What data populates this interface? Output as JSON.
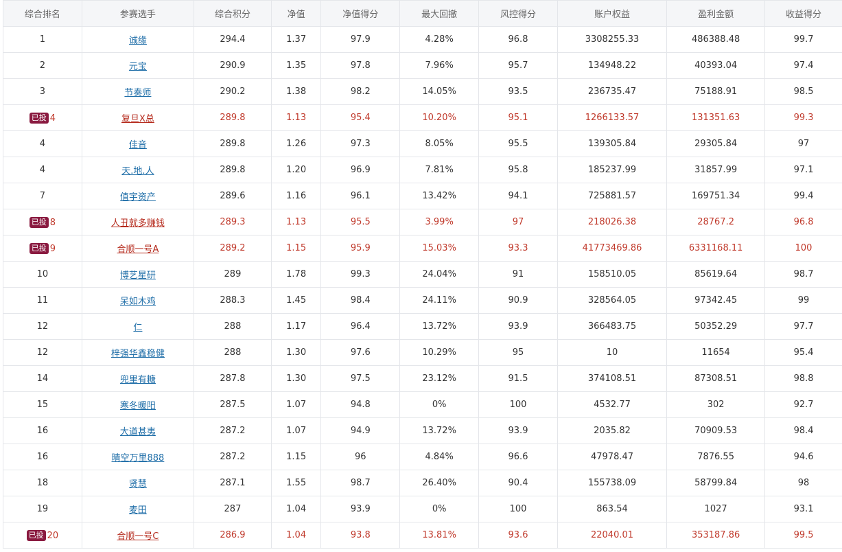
{
  "table": {
    "headers": [
      "综合排名",
      "参赛选手",
      "综合积分",
      "净值",
      "净值得分",
      "最大回撤",
      "风控得分",
      "账户权益",
      "盈利金额",
      "收益得分"
    ],
    "badge_label": "已投",
    "rows": [
      {
        "rank": "1",
        "name": "诚缘",
        "score": "294.4",
        "nav": "1.37",
        "nav_score": "97.9",
        "max_drawdown": "4.28%",
        "risk_score": "96.8",
        "equity": "3308255.33",
        "profit": "486388.48",
        "return_score": "99.7",
        "invested": false
      },
      {
        "rank": "2",
        "name": "元宝",
        "score": "290.9",
        "nav": "1.35",
        "nav_score": "97.8",
        "max_drawdown": "7.96%",
        "risk_score": "95.7",
        "equity": "134948.22",
        "profit": "40393.04",
        "return_score": "97.4",
        "invested": false
      },
      {
        "rank": "3",
        "name": "节奏师",
        "score": "290.2",
        "nav": "1.38",
        "nav_score": "98.2",
        "max_drawdown": "14.05%",
        "risk_score": "93.5",
        "equity": "236735.47",
        "profit": "75188.91",
        "return_score": "98.5",
        "invested": false
      },
      {
        "rank": "4",
        "name": "复旦X总",
        "score": "289.8",
        "nav": "1.13",
        "nav_score": "95.4",
        "max_drawdown": "10.20%",
        "risk_score": "95.1",
        "equity": "1266133.57",
        "profit": "131351.63",
        "return_score": "99.3",
        "invested": true
      },
      {
        "rank": "4",
        "name": "佳音",
        "score": "289.8",
        "nav": "1.26",
        "nav_score": "97.3",
        "max_drawdown": "8.05%",
        "risk_score": "95.5",
        "equity": "139305.84",
        "profit": "29305.84",
        "return_score": "97",
        "invested": false
      },
      {
        "rank": "4",
        "name": "天.地.人",
        "score": "289.8",
        "nav": "1.20",
        "nav_score": "96.9",
        "max_drawdown": "7.81%",
        "risk_score": "95.8",
        "equity": "185237.99",
        "profit": "31857.99",
        "return_score": "97.1",
        "invested": false
      },
      {
        "rank": "7",
        "name": "值宇资产",
        "score": "289.6",
        "nav": "1.16",
        "nav_score": "96.1",
        "max_drawdown": "13.42%",
        "risk_score": "94.1",
        "equity": "725881.57",
        "profit": "169751.34",
        "return_score": "99.4",
        "invested": false
      },
      {
        "rank": "8",
        "name": "人丑就多赚钱",
        "score": "289.3",
        "nav": "1.13",
        "nav_score": "95.5",
        "max_drawdown": "3.99%",
        "risk_score": "97",
        "equity": "218026.38",
        "profit": "28767.2",
        "return_score": "96.8",
        "invested": true
      },
      {
        "rank": "9",
        "name": "合顺一号A",
        "score": "289.2",
        "nav": "1.15",
        "nav_score": "95.9",
        "max_drawdown": "15.03%",
        "risk_score": "93.3",
        "equity": "41773469.86",
        "profit": "6331168.11",
        "return_score": "100",
        "invested": true
      },
      {
        "rank": "10",
        "name": "博艺星研",
        "score": "289",
        "nav": "1.78",
        "nav_score": "99.3",
        "max_drawdown": "24.04%",
        "risk_score": "91",
        "equity": "158510.05",
        "profit": "85619.64",
        "return_score": "98.7",
        "invested": false
      },
      {
        "rank": "11",
        "name": "呆如木鸡",
        "score": "288.3",
        "nav": "1.45",
        "nav_score": "98.4",
        "max_drawdown": "24.11%",
        "risk_score": "90.9",
        "equity": "328564.05",
        "profit": "97342.45",
        "return_score": "99",
        "invested": false
      },
      {
        "rank": "12",
        "name": "仁",
        "score": "288",
        "nav": "1.17",
        "nav_score": "96.4",
        "max_drawdown": "13.72%",
        "risk_score": "93.9",
        "equity": "366483.75",
        "profit": "50352.29",
        "return_score": "97.7",
        "invested": false
      },
      {
        "rank": "12",
        "name": "梓强华鑫稳健",
        "score": "288",
        "nav": "1.30",
        "nav_score": "97.6",
        "max_drawdown": "10.29%",
        "risk_score": "95",
        "equity": "10",
        "profit": "11654",
        "return_score": "95.4",
        "invested": false
      },
      {
        "rank": "14",
        "name": "兜里有糖",
        "score": "287.8",
        "nav": "1.30",
        "nav_score": "97.5",
        "max_drawdown": "23.12%",
        "risk_score": "91.5",
        "equity": "374108.51",
        "profit": "87308.51",
        "return_score": "98.8",
        "invested": false
      },
      {
        "rank": "15",
        "name": "寒冬暖阳",
        "score": "287.5",
        "nav": "1.07",
        "nav_score": "94.8",
        "max_drawdown": "0%",
        "risk_score": "100",
        "equity": "4532.77",
        "profit": "302",
        "return_score": "92.7",
        "invested": false
      },
      {
        "rank": "16",
        "name": "大道甚夷",
        "score": "287.2",
        "nav": "1.07",
        "nav_score": "94.9",
        "max_drawdown": "13.72%",
        "risk_score": "93.9",
        "equity": "2035.82",
        "profit": "70909.53",
        "return_score": "98.4",
        "invested": false
      },
      {
        "rank": "16",
        "name": "晴空万里888",
        "score": "287.2",
        "nav": "1.15",
        "nav_score": "96",
        "max_drawdown": "4.84%",
        "risk_score": "96.6",
        "equity": "47978.47",
        "profit": "7876.55",
        "return_score": "94.6",
        "invested": false
      },
      {
        "rank": "18",
        "name": "贤慧",
        "score": "287.1",
        "nav": "1.55",
        "nav_score": "98.7",
        "max_drawdown": "26.40%",
        "risk_score": "90.4",
        "equity": "155738.09",
        "profit": "58799.84",
        "return_score": "98",
        "invested": false
      },
      {
        "rank": "19",
        "name": "麦田",
        "score": "287",
        "nav": "1.04",
        "nav_score": "93.9",
        "max_drawdown": "0%",
        "risk_score": "100",
        "equity": "863.54",
        "profit": "1027",
        "return_score": "93.1",
        "invested": false
      },
      {
        "rank": "20",
        "name": "合顺一号C",
        "score": "286.9",
        "nav": "1.04",
        "nav_score": "93.8",
        "max_drawdown": "13.81%",
        "risk_score": "93.6",
        "equity": "22040.01",
        "profit": "353187.86",
        "return_score": "99.5",
        "invested": true
      }
    ]
  },
  "colors": {
    "link": "#1f6ea8",
    "invested_text": "#c0392b",
    "badge_bg": "#8a1a40",
    "header_bg": "#f5f6f8",
    "border": "#e4e6ea"
  }
}
